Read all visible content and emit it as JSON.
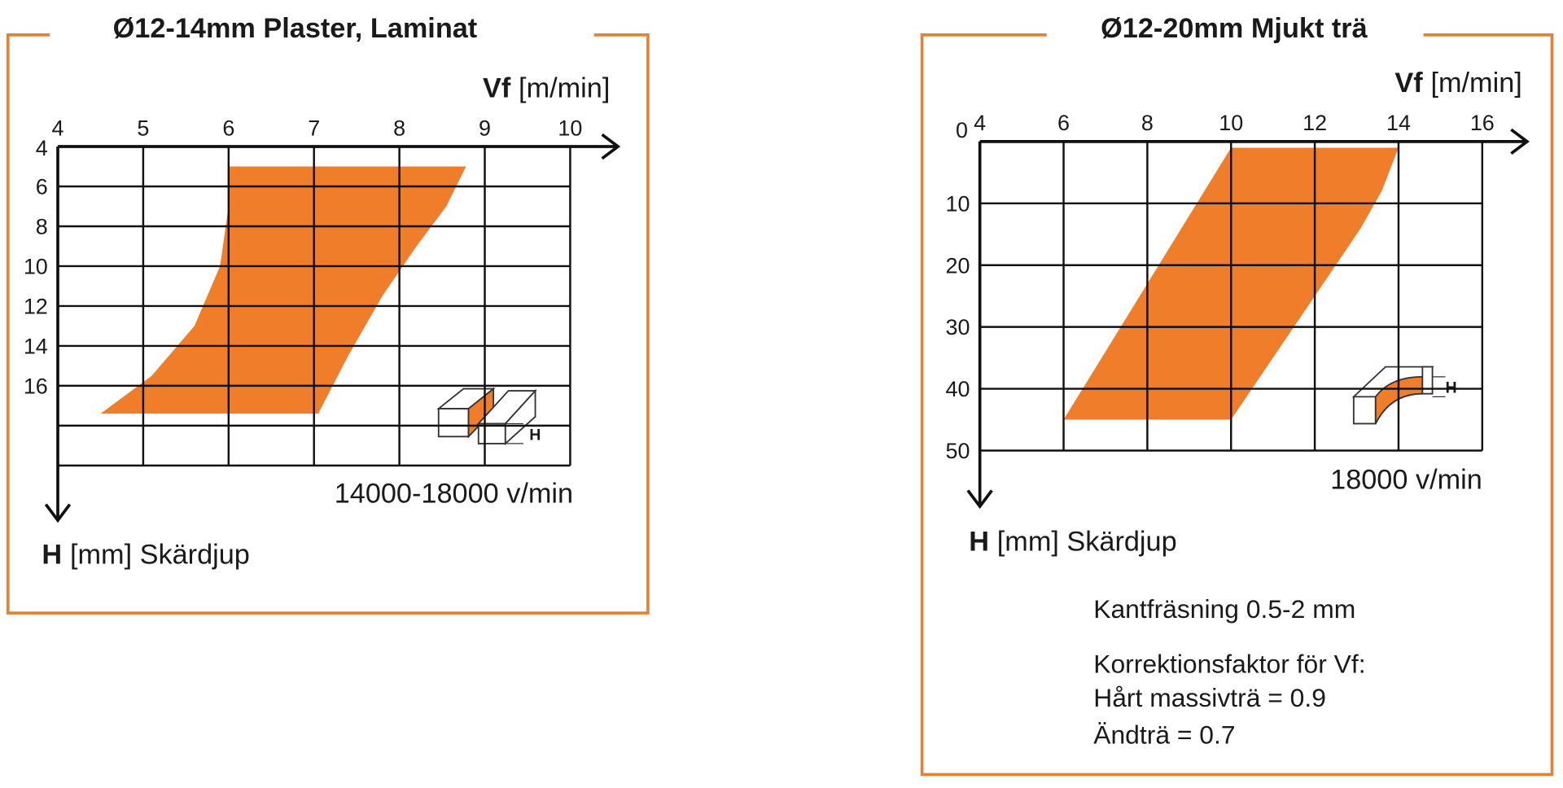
{
  "chart_data": [
    {
      "type": "region",
      "title": "Ø12-14mm Plaster, Laminat",
      "x_label_symbol": "Vf",
      "x_label_unit": "[m/min]",
      "y_label_symbol": "H",
      "y_label_unit": "[mm] Skärdjup",
      "annotation": "14000-18000 v/min",
      "icon_label": "H",
      "color": "#f07d2a",
      "x": [
        6,
        8.78,
        8.55,
        8.2,
        7.8,
        7.4,
        7.05,
        4.5,
        5.1,
        5.6,
        5.9,
        6
      ],
      "values": [
        5,
        5,
        7,
        9,
        11.5,
        14.5,
        17.4,
        17.4,
        15.5,
        13,
        10,
        7
      ],
      "xlim": [
        4,
        10
      ],
      "xticks": [
        4,
        5,
        6,
        7,
        8,
        9,
        10
      ],
      "ylim": [
        4,
        20
      ],
      "yticks": [
        4,
        6,
        8,
        10,
        12,
        14,
        16
      ],
      "ygrid": [
        4,
        6,
        8,
        10,
        12,
        14,
        16,
        18,
        20
      ],
      "grid": true
    },
    {
      "type": "region",
      "title": "Ø12-20mm Mjukt trä",
      "x_label_symbol": "Vf",
      "x_label_unit": "[m/min]",
      "y_label_symbol": "H",
      "y_label_unit": "[mm] Skärdjup",
      "annotation": "18000 v/min",
      "icon_label": "H",
      "color": "#f07d2a",
      "x": [
        10,
        14,
        13.6,
        13.1,
        12.5,
        10,
        6
      ],
      "values": [
        1,
        1,
        8,
        14,
        20,
        45,
        45
      ],
      "xlim": [
        4,
        16
      ],
      "xticks": [
        4,
        6,
        8,
        10,
        12,
        14,
        16
      ],
      "ylim": [
        0,
        50
      ],
      "yticks": [
        0,
        10,
        20,
        30,
        40,
        50
      ],
      "grid": true,
      "notes": [
        "Kantfräsning 0.5-2 mm",
        "Korrektionsfaktor för Vf:",
        "Hårt massivträ = 0.9",
        "Ändträ = 0.7"
      ]
    }
  ]
}
